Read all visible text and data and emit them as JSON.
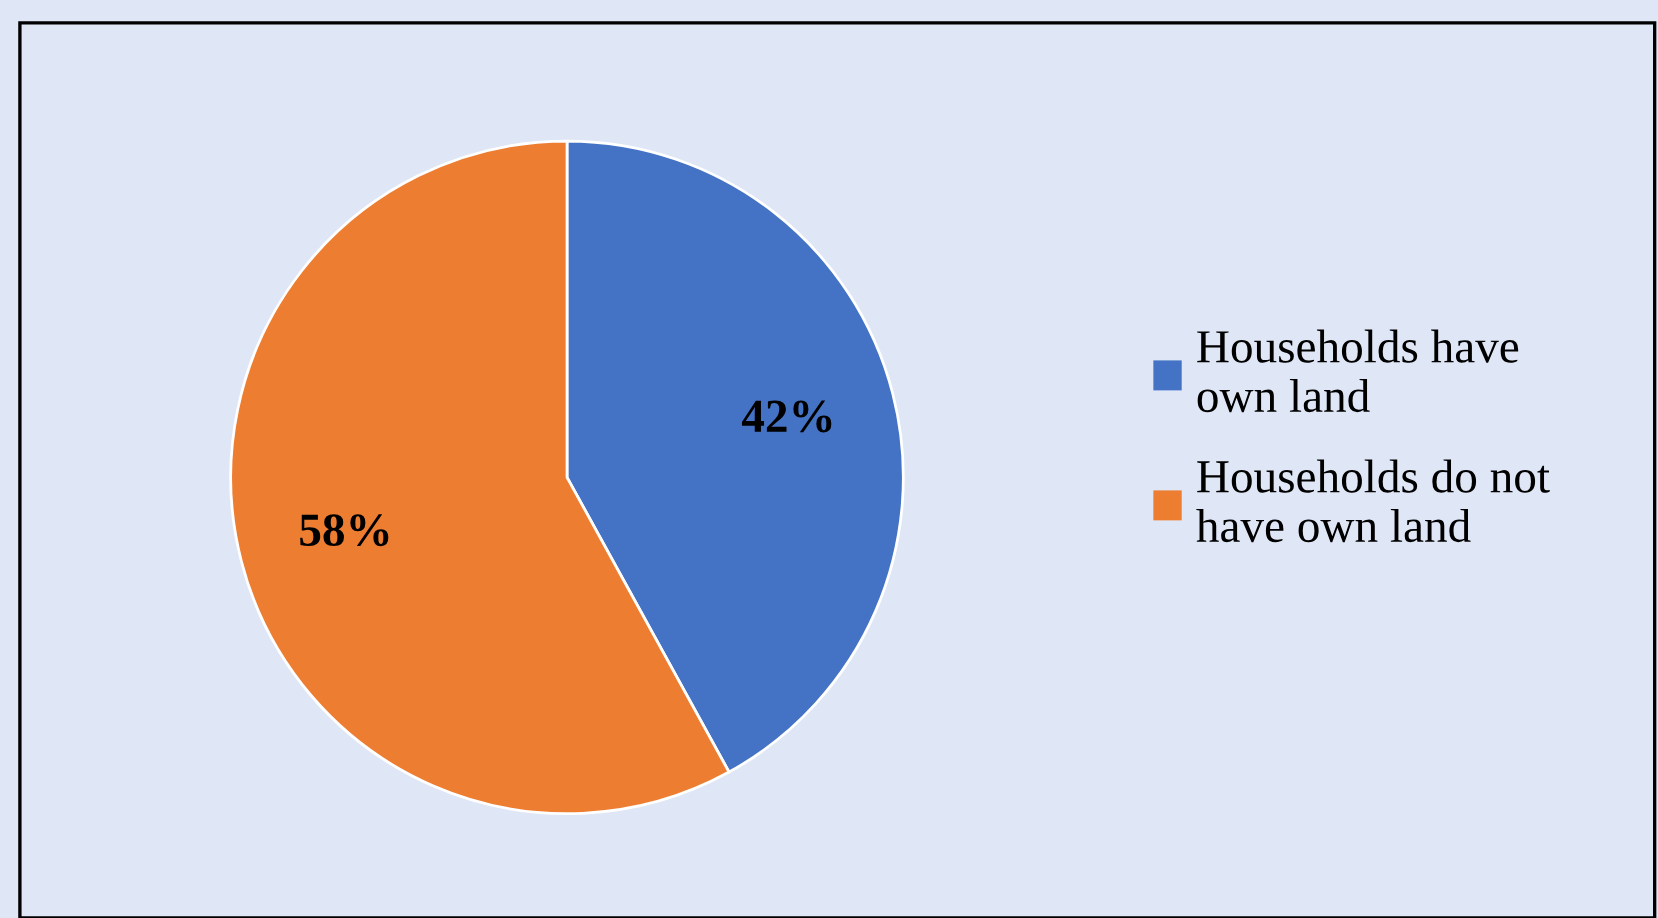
{
  "chart_data": {
    "type": "pie",
    "categories": [
      "Households have own land",
      "Households do not have own land"
    ],
    "values": [
      42,
      58
    ],
    "colors": [
      "#4472c4",
      "#ed7d31"
    ],
    "value_labels": [
      "42%",
      "58%"
    ],
    "legend": "right"
  }
}
